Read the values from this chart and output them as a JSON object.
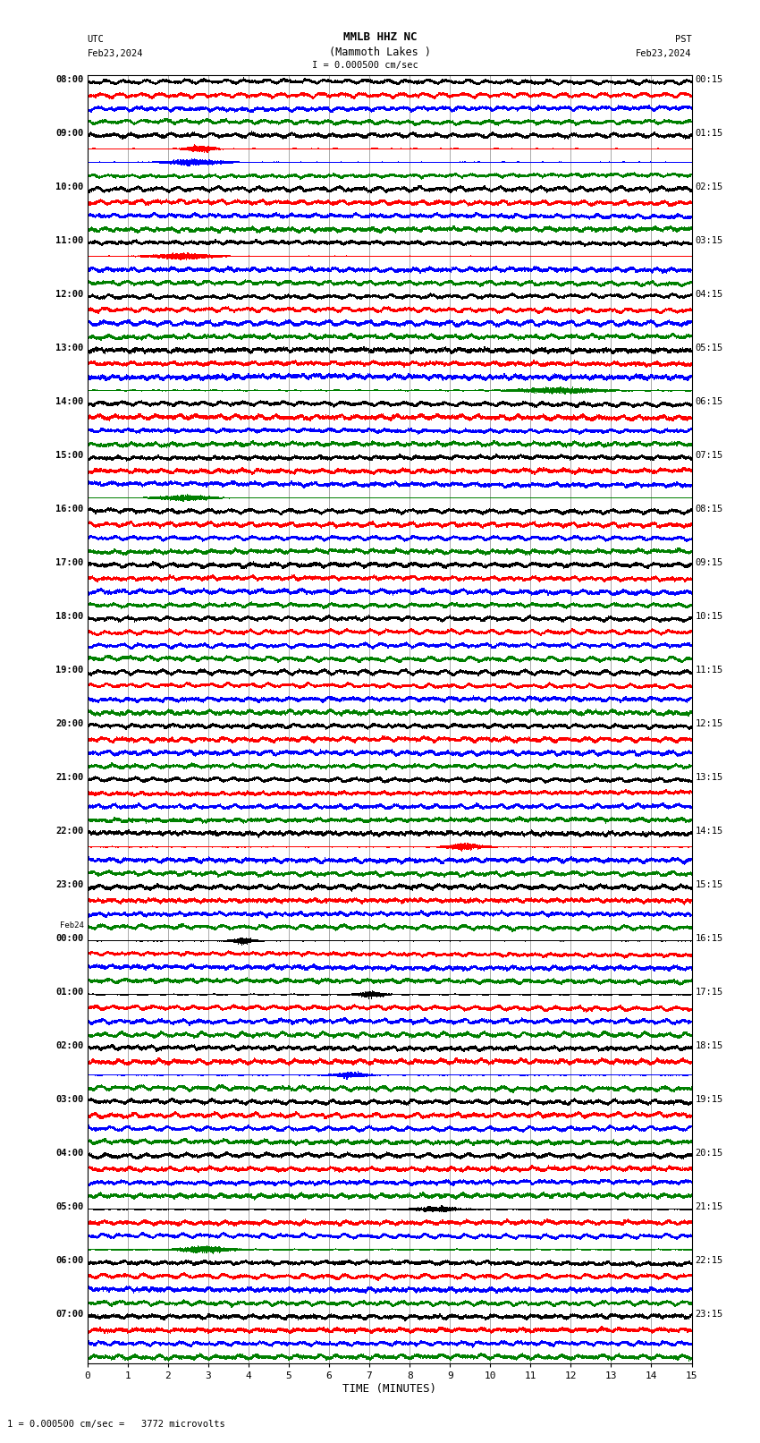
{
  "title_line1": "MMLB HHZ NC",
  "title_line2": "(Mammoth Lakes )",
  "title_line3": "I = 0.000500 cm/sec",
  "left_header_line1": "UTC",
  "left_header_line2": "Feb23,2024",
  "right_header_line1": "PST",
  "right_header_line2": "Feb23,2024",
  "xlabel": "TIME (MINUTES)",
  "footer": "1 = 0.000500 cm/sec =   3772 microvolts",
  "utc_labels": [
    "08:00",
    "09:00",
    "10:00",
    "11:00",
    "12:00",
    "13:00",
    "14:00",
    "15:00",
    "16:00",
    "17:00",
    "18:00",
    "19:00",
    "20:00",
    "21:00",
    "22:00",
    "23:00",
    "Feb24\n00:00",
    "01:00",
    "02:00",
    "03:00",
    "04:00",
    "05:00",
    "06:00",
    "07:00"
  ],
  "pst_labels": [
    "00:15",
    "01:15",
    "02:15",
    "03:15",
    "04:15",
    "05:15",
    "06:15",
    "07:15",
    "08:15",
    "09:15",
    "10:15",
    "11:15",
    "12:15",
    "13:15",
    "14:15",
    "15:15",
    "16:15",
    "17:15",
    "18:15",
    "19:15",
    "20:15",
    "21:15",
    "22:15",
    "23:15"
  ],
  "num_rows": 24,
  "traces_per_row": 4,
  "trace_colors": [
    "black",
    "red",
    "blue",
    "green"
  ],
  "bg_color": "white",
  "grid_color": "#888888",
  "xmin": 0,
  "xmax": 15,
  "xticks": [
    0,
    1,
    2,
    3,
    4,
    5,
    6,
    7,
    8,
    9,
    10,
    11,
    12,
    13,
    14,
    15
  ],
  "figure_width": 8.5,
  "figure_height": 16.13,
  "dpi": 100
}
